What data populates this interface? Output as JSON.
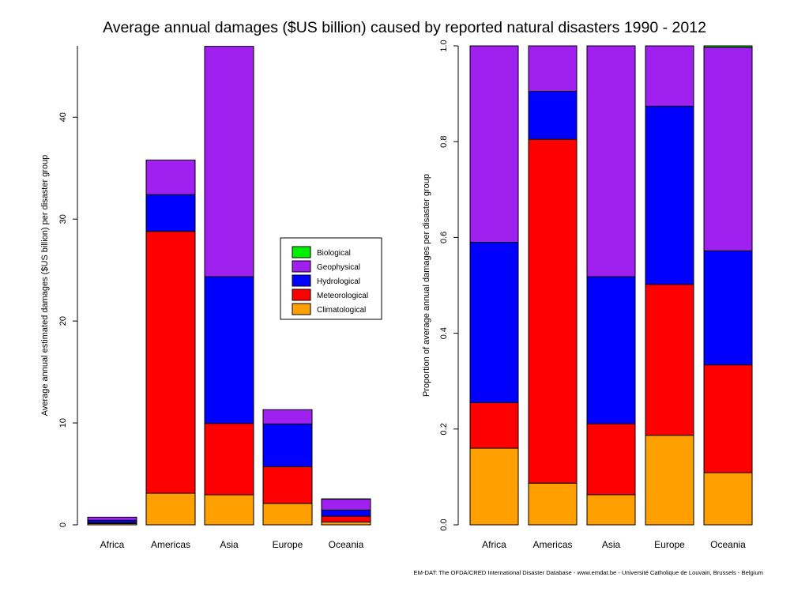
{
  "title": "Average annual damages ($US billion) caused by reported natural disasters 1990 - 2012",
  "caption": "EM-DAT: The OFDA/CRED International Disaster Database - www.emdat.be - Université Catholique de Louvain, Brussels - Belgium",
  "colors": {
    "Biological": "#00ee00",
    "Geophysical": "#a020f0",
    "Hydrological": "#0000ff",
    "Meteorological": "#ff0000",
    "Climatological": "#ffa000"
  },
  "legend": {
    "position": "center",
    "entries": [
      "Biological",
      "Geophysical",
      "Hydrological",
      "Meteorological",
      "Climatological"
    ]
  },
  "chart_data": [
    {
      "type": "bar",
      "stacked": true,
      "title": "",
      "xlabel": "",
      "ylabel": "Average annual estimated damages ($US billion) per disaster group",
      "ylim": [
        0,
        47
      ],
      "yticks": [
        "0",
        "10",
        "20",
        "30",
        "40"
      ],
      "categories": [
        "Africa",
        "Americas",
        "Asia",
        "Europe",
        "Oceania"
      ],
      "series": [
        {
          "name": "Climatological",
          "values": [
            0.12,
            3.1,
            2.95,
            2.1,
            0.28
          ]
        },
        {
          "name": "Meteorological",
          "values": [
            0.07,
            25.7,
            7.0,
            3.6,
            0.57
          ]
        },
        {
          "name": "Hydrological",
          "values": [
            0.25,
            3.6,
            14.4,
            4.2,
            0.6
          ]
        },
        {
          "name": "Geophysical",
          "values": [
            0.31,
            3.4,
            22.6,
            1.4,
            1.09
          ]
        },
        {
          "name": "Biological",
          "values": [
            0.0,
            0.0,
            0.0,
            0.0,
            0.01
          ]
        }
      ]
    },
    {
      "type": "bar",
      "stacked": true,
      "title": "",
      "xlabel": "",
      "ylabel": "Proportion of average annual damages per disaster group",
      "ylim": [
        0,
        1
      ],
      "yticks": [
        "0.0",
        "0.2",
        "0.4",
        "0.6",
        "0.8",
        "1.0"
      ],
      "categories": [
        "Africa",
        "Americas",
        "Asia",
        "Europe",
        "Oceania"
      ],
      "series": [
        {
          "name": "Climatological",
          "values": [
            0.16,
            0.087,
            0.063,
            0.187,
            0.109
          ]
        },
        {
          "name": "Meteorological",
          "values": [
            0.095,
            0.718,
            0.148,
            0.315,
            0.225
          ]
        },
        {
          "name": "Hydrological",
          "values": [
            0.335,
            0.1,
            0.307,
            0.372,
            0.238
          ]
        },
        {
          "name": "Geophysical",
          "values": [
            0.41,
            0.095,
            0.482,
            0.126,
            0.425
          ]
        },
        {
          "name": "Biological",
          "values": [
            0.0,
            0.0,
            0.0,
            0.0,
            0.003
          ]
        }
      ]
    }
  ]
}
